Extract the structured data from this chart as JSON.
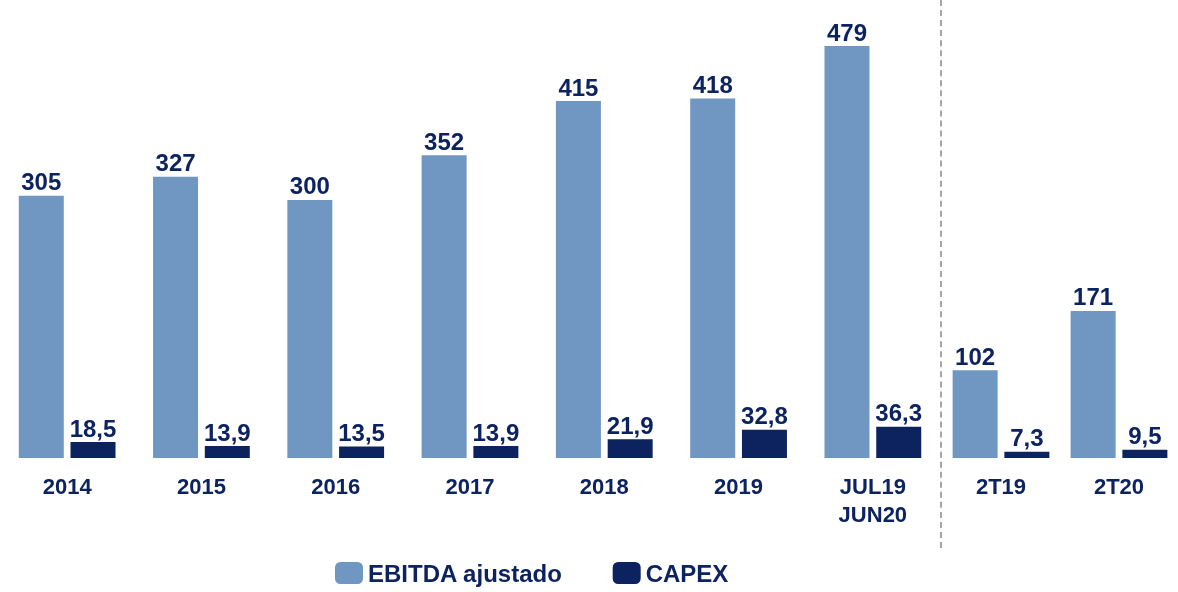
{
  "chart_data": [
    {
      "type": "bar",
      "categories": [
        "2014",
        "2015",
        "2016",
        "2017",
        "2018",
        "2019",
        "JUL19\nJUN20"
      ],
      "tick_labels": "x",
      "legend": "bottom",
      "series": [
        {
          "name": "EBITDA ajustado",
          "color": "#7096c2",
          "values": [
            305,
            327,
            300,
            352,
            415,
            418,
            479
          ],
          "value_labels": [
            "305",
            "327",
            "300",
            "352",
            "415",
            "418",
            "479"
          ]
        },
        {
          "name": "CAPEX",
          "color": "#0d2360",
          "values": [
            18.5,
            13.9,
            13.5,
            13.9,
            21.9,
            32.8,
            36.3
          ],
          "value_labels": [
            "18,5",
            "13,9",
            "13,5",
            "13,9",
            "21,9",
            "32,8",
            "36,3"
          ]
        }
      ]
    },
    {
      "type": "bar",
      "categories": [
        "2T19",
        "2T20"
      ],
      "tick_labels": "x",
      "legend": false,
      "series": [
        {
          "color": "#7096c2",
          "values": [
            102,
            171
          ],
          "value_labels": [
            "102",
            "171"
          ]
        },
        {
          "color": "#0d2360",
          "values": [
            7.3,
            9.5
          ],
          "value_labels": [
            "7,3",
            "9,5"
          ]
        }
      ]
    }
  ]
}
